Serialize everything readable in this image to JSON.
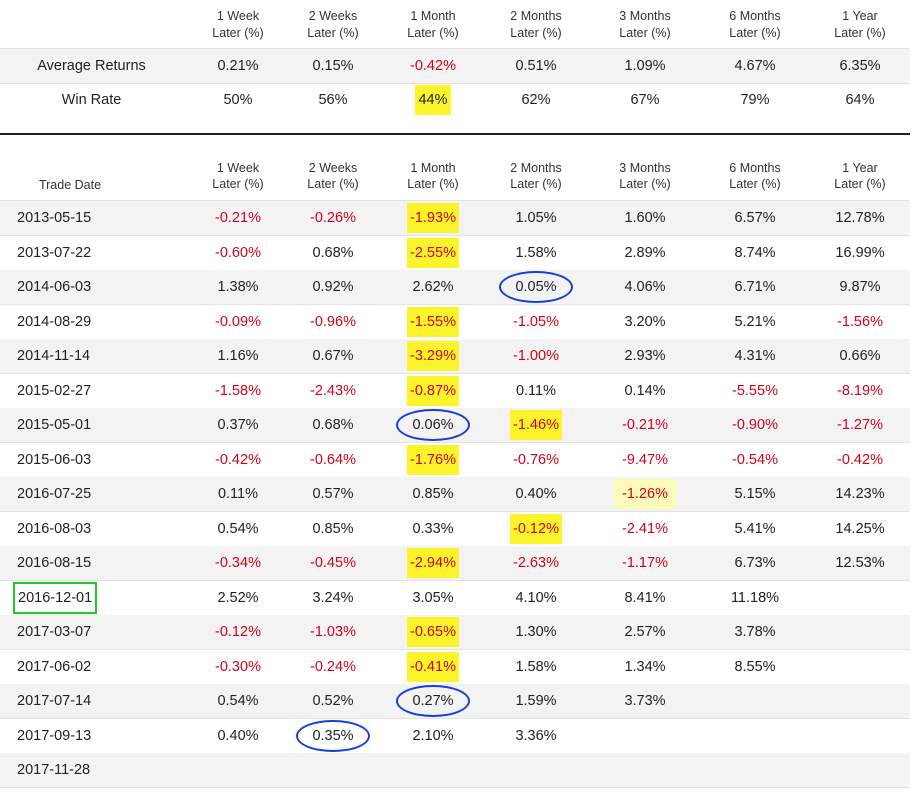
{
  "headers": [
    "1 Week Later (%)",
    "2 Weeks Later (%)",
    "1 Month Later (%)",
    "2 Months Later (%)",
    "3 Months Later (%)",
    "6 Months Later (%)",
    "1 Year Later (%)"
  ],
  "header_lines": [
    [
      "1 Week",
      "Later (%)"
    ],
    [
      "2 Weeks",
      "Later (%)"
    ],
    [
      "1 Month",
      "Later (%)"
    ],
    [
      "2 Months",
      "Later (%)"
    ],
    [
      "3 Months",
      "Later (%)"
    ],
    [
      "6 Months",
      "Later (%)"
    ],
    [
      "1 Year",
      "Later (%)"
    ]
  ],
  "summary": [
    {
      "label": "Average Returns",
      "values": [
        "0.21%",
        "0.15%",
        "-0.42%",
        "0.51%",
        "1.09%",
        "4.67%",
        "6.35%"
      ]
    },
    {
      "label": "Win Rate",
      "values": [
        "50%",
        "56%",
        "44%",
        "62%",
        "67%",
        "79%",
        "64%"
      ]
    }
  ],
  "detail_date_header": "Trade Date",
  "rows": [
    {
      "date": "2013-05-15",
      "values": [
        "-0.21%",
        "-0.26%",
        "-1.93%",
        "1.05%",
        "1.60%",
        "6.57%",
        "12.78%"
      ]
    },
    {
      "date": "2013-07-22",
      "values": [
        "-0.60%",
        "0.68%",
        "-2.55%",
        "1.58%",
        "2.89%",
        "8.74%",
        "16.99%"
      ]
    },
    {
      "date": "2014-06-03",
      "values": [
        "1.38%",
        "0.92%",
        "2.62%",
        "0.05%",
        "4.06%",
        "6.71%",
        "9.87%"
      ]
    },
    {
      "date": "2014-08-29",
      "values": [
        "-0.09%",
        "-0.96%",
        "-1.55%",
        "-1.05%",
        "3.20%",
        "5.21%",
        "-1.56%"
      ]
    },
    {
      "date": "2014-11-14",
      "values": [
        "1.16%",
        "0.67%",
        "-3.29%",
        "-1.00%",
        "2.93%",
        "4.31%",
        "0.66%"
      ]
    },
    {
      "date": "2015-02-27",
      "values": [
        "-1.58%",
        "-2.43%",
        "-0.87%",
        "0.11%",
        "0.14%",
        "-5.55%",
        "-8.19%"
      ]
    },
    {
      "date": "2015-05-01",
      "values": [
        "0.37%",
        "0.68%",
        "0.06%",
        "-1.46%",
        "-0.21%",
        "-0.90%",
        "-1.27%"
      ]
    },
    {
      "date": "2015-06-03",
      "values": [
        "-0.42%",
        "-0.64%",
        "-1.76%",
        "-0.76%",
        "-9.47%",
        "-0.54%",
        "-0.42%"
      ]
    },
    {
      "date": "2016-07-25",
      "values": [
        "0.11%",
        "0.57%",
        "0.85%",
        "0.40%",
        "-1.26%",
        "5.15%",
        "14.23%"
      ]
    },
    {
      "date": "2016-08-03",
      "values": [
        "0.54%",
        "0.85%",
        "0.33%",
        "-0.12%",
        "-2.41%",
        "5.41%",
        "14.25%"
      ]
    },
    {
      "date": "2016-08-15",
      "values": [
        "-0.34%",
        "-0.45%",
        "-2.94%",
        "-2.63%",
        "-1.17%",
        "6.73%",
        "12.53%"
      ]
    },
    {
      "date": "2016-12-01",
      "values": [
        "2.52%",
        "3.24%",
        "3.05%",
        "4.10%",
        "8.41%",
        "11.18%",
        ""
      ]
    },
    {
      "date": "2017-03-07",
      "values": [
        "-0.12%",
        "-1.03%",
        "-0.65%",
        "1.30%",
        "2.57%",
        "3.78%",
        ""
      ]
    },
    {
      "date": "2017-06-02",
      "values": [
        "-0.30%",
        "-0.24%",
        "-0.41%",
        "1.58%",
        "1.34%",
        "8.55%",
        ""
      ]
    },
    {
      "date": "2017-07-14",
      "values": [
        "0.54%",
        "0.52%",
        "0.27%",
        "1.59%",
        "3.73%",
        "",
        ""
      ]
    },
    {
      "date": "2017-09-13",
      "values": [
        "0.40%",
        "0.35%",
        "2.10%",
        "3.36%",
        "",
        "",
        ""
      ]
    },
    {
      "date": "2017-11-28",
      "values": [
        "",
        "",
        "",
        "",
        "",
        "",
        ""
      ]
    }
  ],
  "colors": {
    "negative": "#d0021b",
    "highlight": "#fbf42a",
    "circle": "#1a3fd6",
    "box": "#22c922"
  }
}
